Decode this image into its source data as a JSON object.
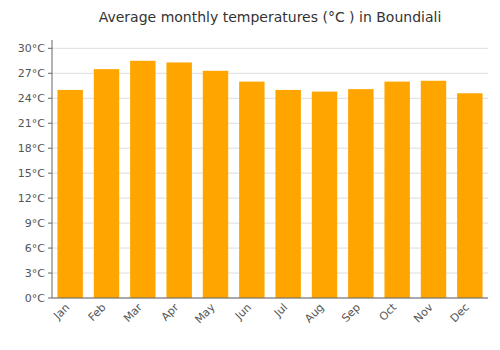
{
  "chart_data": {
    "type": "bar",
    "title": "Average monthly temperatures (°C ) in Boundiali",
    "categories": [
      "Jan",
      "Feb",
      "Mar",
      "Apr",
      "May",
      "Jun",
      "Jul",
      "Aug",
      "Sep",
      "Oct",
      "Nov",
      "Dec"
    ],
    "values": [
      25.0,
      27.5,
      28.5,
      28.3,
      27.3,
      26.0,
      25.0,
      24.8,
      25.1,
      26.0,
      26.1,
      24.6
    ],
    "color": "#FFA500",
    "ylim": [
      0,
      31
    ],
    "yticks": [
      {
        "value": 0,
        "label": "0°C"
      },
      {
        "value": 3,
        "label": "3°C"
      },
      {
        "value": 6,
        "label": "6°C"
      },
      {
        "value": 9,
        "label": "9°C"
      },
      {
        "value": 12,
        "label": "12°C"
      },
      {
        "value": 15,
        "label": "15°C"
      },
      {
        "value": 18,
        "label": "18°C"
      },
      {
        "value": 21,
        "label": "21°C"
      },
      {
        "value": 24,
        "label": "24°C"
      },
      {
        "value": 27,
        "label": "27°C"
      },
      {
        "value": 30,
        "label": "30°C"
      }
    ],
    "grid": true
  }
}
